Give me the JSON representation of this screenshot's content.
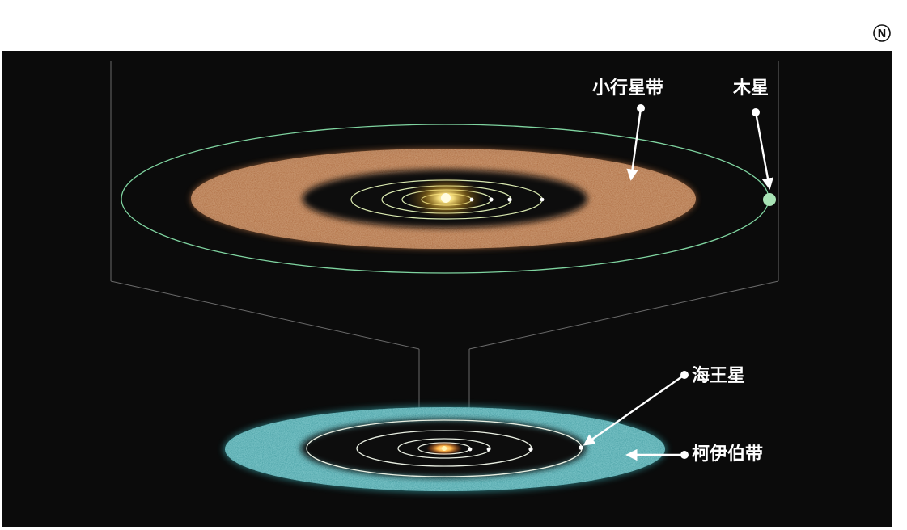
{
  "badge": {
    "text": "N"
  },
  "labels": {
    "asteroid_belt": "小行星带",
    "jupiter": "木星",
    "neptune": "海王星",
    "kuiper_belt": "柯伊伯带"
  },
  "colors": {
    "background": "#ffffff",
    "space": "#0b0b0b",
    "asteroid_belt": "#b06a3a",
    "kuiper_belt": "#3fa3a8",
    "sun": "#ffd24a",
    "orbit_upper": "#9fe0b8",
    "orbit_lower": "#e9efe2",
    "jupiter": "#a8e3b5",
    "arrow": "#ffffff"
  }
}
